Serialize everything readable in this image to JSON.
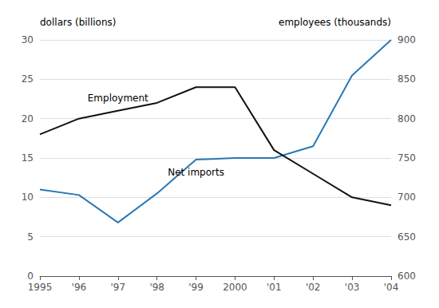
{
  "chart_data": {
    "type": "line",
    "categories": [
      "1995",
      "'96",
      "'97",
      "'98",
      "'99",
      "2000",
      "'01",
      "'02",
      "'03",
      "'04"
    ],
    "series": [
      {
        "name": "Net imports",
        "color": "#2878b5",
        "axis": "y",
        "values": [
          11.0,
          10.3,
          6.8,
          10.5,
          14.8,
          15.0,
          15.0,
          16.5,
          25.5,
          30.0
        ]
      },
      {
        "name": "Employment",
        "color": "#111111",
        "axis": "y2",
        "values": [
          780,
          800,
          810,
          820,
          840,
          840,
          760,
          730,
          700,
          690
        ]
      }
    ],
    "ylabel": "dollars (billions)",
    "y2label": "employees (thousands)",
    "ylim": [
      0,
      30
    ],
    "yticks": [
      0,
      5,
      10,
      15,
      20,
      25,
      30
    ],
    "y2lim": [
      600,
      900
    ],
    "y2ticks": [
      600,
      650,
      700,
      750,
      800,
      850,
      900
    ],
    "grid": true
  }
}
